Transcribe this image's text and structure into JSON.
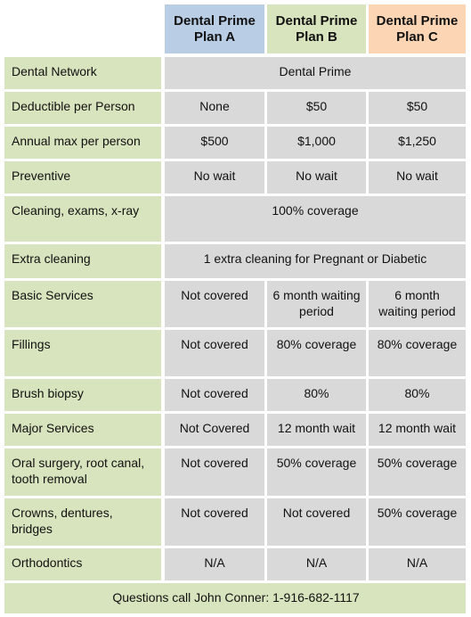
{
  "header": {
    "plans": [
      "Dental Prime Plan A",
      "Dental Prime Plan B",
      "Dental Prime Plan C"
    ]
  },
  "table": {
    "rows": [
      {
        "label": "Dental Network",
        "values": [
          "Dental Prime"
        ]
      },
      {
        "label": "Deductible per Person",
        "values": [
          "None",
          "$50",
          "$50"
        ]
      },
      {
        "label": "Annual max per person",
        "values": [
          "$500",
          "$1,000",
          "$1,250"
        ]
      },
      {
        "label": "Preventive",
        "values": [
          "No wait",
          "No wait",
          "No wait"
        ]
      },
      {
        "label": "Cleaning, exams, x-ray",
        "values": [
          "100% coverage"
        ]
      },
      {
        "label": "Extra cleaning",
        "values": [
          "1 extra cleaning for Pregnant or Diabetic"
        ]
      },
      {
        "label": "Basic Services",
        "values": [
          "Not covered",
          "6 month waiting period",
          "6 month waiting period"
        ]
      },
      {
        "label": "Fillings",
        "values": [
          "Not covered",
          "80% coverage",
          "80% coverage"
        ]
      },
      {
        "label": "Brush biopsy",
        "values": [
          "Not covered",
          "80%",
          "80%"
        ]
      },
      {
        "label": "Major Services",
        "values": [
          "Not Covered",
          "12 month wait",
          "12 month wait"
        ]
      },
      {
        "label": "Oral surgery, root canal, tooth removal",
        "values": [
          "Not covered",
          "50% coverage",
          "50% coverage"
        ]
      },
      {
        "label": "Crowns, dentures, bridges",
        "values": [
          "Not covered",
          "Not covered",
          "50% coverage"
        ]
      },
      {
        "label": "Orthodontics",
        "values": [
          "N/A",
          "N/A",
          "N/A"
        ]
      }
    ]
  },
  "footer": {
    "text": "Questions call John Conner:  1-916-682-1117"
  }
}
